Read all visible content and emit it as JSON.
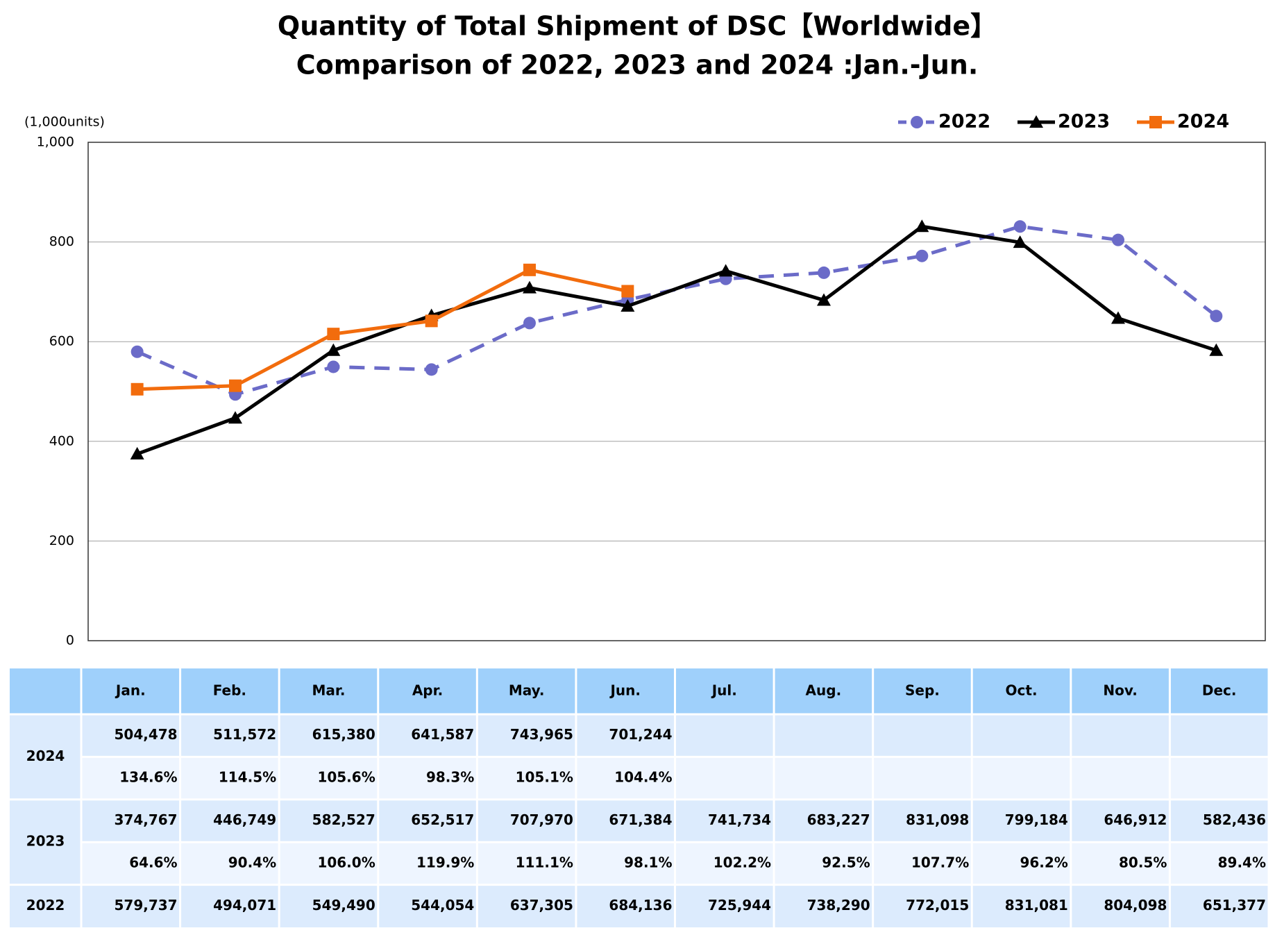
{
  "chart_data": {
    "type": "line",
    "title": "Quantity of Total Shipment of DSC【Worldwide】",
    "subtitle": "Comparison of 2022, 2023 and 2024 :Jan.-Jun.",
    "y_unit_label": "(1,000units)",
    "categories": [
      "Jan.",
      "Feb.",
      "Mar.",
      "Apr.",
      "May.",
      "Jun.",
      "Jul.",
      "Aug.",
      "Sep.",
      "Oct.",
      "Nov.",
      "Dec."
    ],
    "ylim": [
      0,
      1000
    ],
    "yticks": [
      0,
      200,
      400,
      600,
      800,
      {
        "value": 1000,
        "label": "1,000"
      }
    ],
    "grid": true,
    "legend": "top-right",
    "series": [
      {
        "name": "2022",
        "color": "#6b6bc8",
        "marker": "circle",
        "dashed": true,
        "values": [
          579.737,
          494.071,
          549.49,
          544.054,
          637.305,
          684.136,
          725.944,
          738.29,
          772.015,
          831.081,
          804.098,
          651.377
        ],
        "value_labels": [
          "579,737",
          "494,071",
          "549,490",
          "544,054",
          "637,305",
          "684,136",
          "725,944",
          "738,290",
          "772,015",
          "831,081",
          "804,098",
          "651,377"
        ]
      },
      {
        "name": "2023",
        "color": "#000000",
        "marker": "triangle",
        "dashed": false,
        "values": [
          374.767,
          446.749,
          582.527,
          652.517,
          707.97,
          671.384,
          741.734,
          683.227,
          831.098,
          799.184,
          646.912,
          582.436
        ],
        "value_labels": [
          "374,767",
          "446,749",
          "582,527",
          "652,517",
          "707,970",
          "671,384",
          "741,734",
          "683,227",
          "831,098",
          "799,184",
          "646,912",
          "582,436"
        ],
        "ratio_labels": [
          "64.6%",
          "90.4%",
          "106.0%",
          "119.9%",
          "111.1%",
          "98.1%",
          "102.2%",
          "92.5%",
          "107.7%",
          "96.2%",
          "80.5%",
          "89.4%"
        ]
      },
      {
        "name": "2024",
        "color": "#f26c0d",
        "marker": "square",
        "dashed": false,
        "values": [
          504.478,
          511.572,
          615.38,
          641.587,
          743.965,
          701.244,
          null,
          null,
          null,
          null,
          null,
          null
        ],
        "value_labels": [
          "504,478",
          "511,572",
          "615,380",
          "641,587",
          "743,965",
          "701,244",
          null,
          null,
          null,
          null,
          null,
          null
        ],
        "ratio_labels": [
          "134.6%",
          "114.5%",
          "105.6%",
          "98.3%",
          "105.1%",
          "104.4%",
          null,
          null,
          null,
          null,
          null,
          null
        ]
      }
    ]
  }
}
